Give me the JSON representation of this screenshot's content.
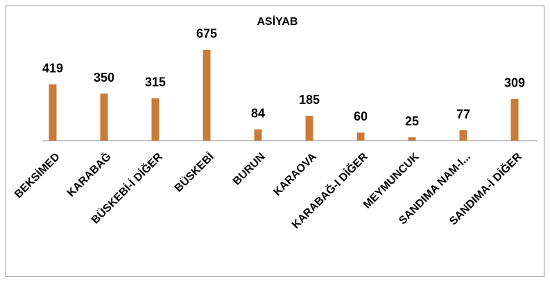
{
  "chart_data": {
    "type": "bar",
    "title": "ASİYAB",
    "categories": [
      "BEKSİMED",
      "KARABAĞ",
      "BÜSKEBİ-İ DİĞER",
      "BÜSKEBİ",
      "BURUN",
      "KARAOVA",
      "KARABAĞ-I DİĞER",
      "MEYMUNCUK",
      "SANDIMA NAM-I...",
      "SANDIMA-İ DİĞER"
    ],
    "values": [
      419,
      350,
      315,
      675,
      84,
      185,
      60,
      25,
      77,
      309
    ],
    "color": "#c77c3a",
    "ylim": [
      0,
      700
    ]
  }
}
